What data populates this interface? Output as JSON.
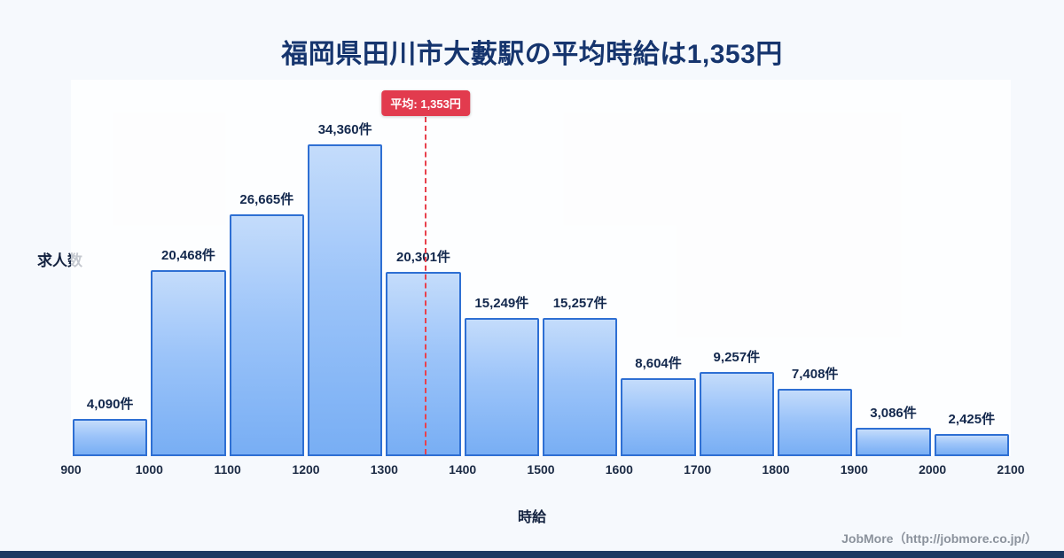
{
  "page": {
    "title": "福岡県田川市大藪駅の平均時給は1,353円",
    "footer_credit": "JobMore（http://jobmore.co.jp/）"
  },
  "chart_data": {
    "type": "bar",
    "title": "福岡県田川市大藪駅の平均時給は1,353円",
    "xlabel": "時給",
    "ylabel": "求人数",
    "x_range": [
      900,
      2100
    ],
    "x_ticks": [
      "900",
      "1000",
      "1100",
      "1200",
      "1300",
      "1400",
      "1500",
      "1600",
      "1700",
      "1800",
      "1900",
      "2000",
      "2100"
    ],
    "categories": [
      "900-1000",
      "1000-1100",
      "1100-1200",
      "1200-1300",
      "1300-1400",
      "1400-1500",
      "1500-1600",
      "1600-1700",
      "1700-1800",
      "1800-1900",
      "1900-2000",
      "2000-2100"
    ],
    "values": [
      4090,
      20468,
      26665,
      34360,
      20301,
      15249,
      15257,
      8604,
      9257,
      7408,
      3086,
      2425
    ],
    "value_labels": [
      "4,090件",
      "20,468件",
      "26,665件",
      "34,360件",
      "20,301件",
      "15,249件",
      "15,257件",
      "8,604件",
      "9,257件",
      "7,408件",
      "3,086件",
      "2,425件"
    ],
    "average": {
      "value": 1353,
      "label": "平均: 1,353円"
    },
    "legend": "none",
    "grid": false,
    "colors": {
      "bar_fill_top": "#c4dcfb",
      "bar_fill_bottom": "#78aef4",
      "bar_border": "#2e6fd3",
      "average_line": "#e8414d",
      "average_badge_bg": "#e23b4e",
      "title_text": "#16356e",
      "background": "#f6f9fd",
      "bottom_strip": "#1d3a63",
      "footer_text": "#8b929c"
    }
  }
}
